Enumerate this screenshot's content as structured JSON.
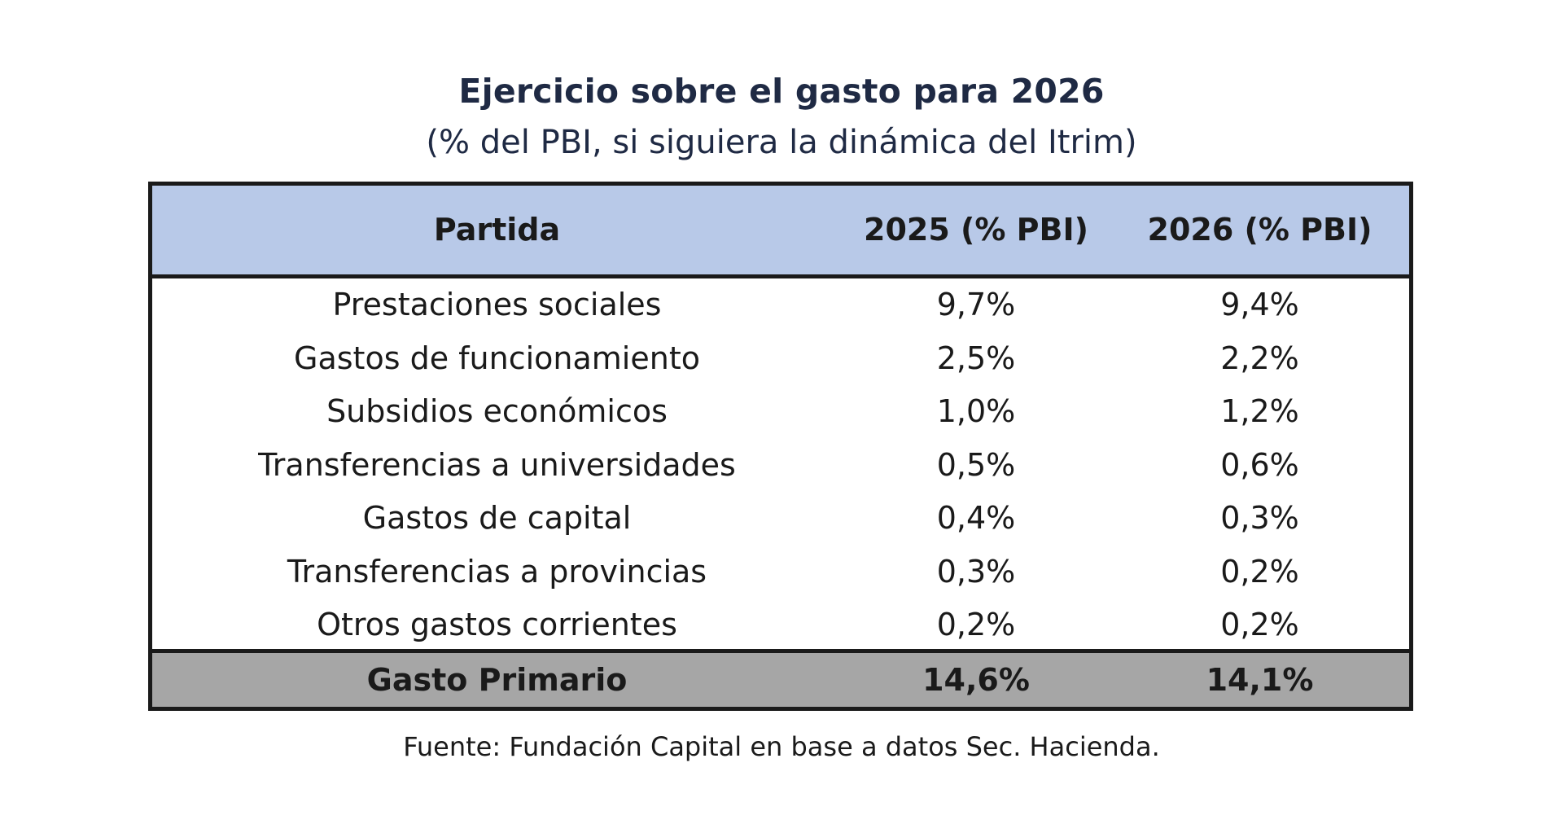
{
  "header": {
    "title": "Ejercicio sobre el gasto para 2026",
    "subtitle": "(% del PBI, si siguiera la dinámica del Itrim)"
  },
  "chart_data": {
    "type": "table",
    "title": "Ejercicio sobre el gasto para 2026",
    "subtitle": "(% del PBI, si siguiera la dinámica del Itrim)",
    "columns": [
      "Partida",
      "2025 (% PBI)",
      "2026 (% PBI)"
    ],
    "rows": [
      [
        "Prestaciones sociales",
        "9,7%",
        "9,4%"
      ],
      [
        "Gastos de funcionamiento",
        "2,5%",
        "2,2%"
      ],
      [
        "Subsidios económicos",
        "1,0%",
        "1,2%"
      ],
      [
        "Transferencias a universidades",
        "0,5%",
        "0,6%"
      ],
      [
        "Gastos de capital",
        "0,4%",
        "0,3%"
      ],
      [
        "Transferencias a provincias",
        "0,3%",
        "0,2%"
      ],
      [
        "Otros gastos corrientes",
        "0,2%",
        "0,2%"
      ]
    ],
    "total": [
      "Gasto Primario",
      "14,6%",
      "14,1%"
    ]
  },
  "footer": {
    "source": "Fuente: Fundación Capital en base a datos Sec. Hacienda."
  },
  "colors": {
    "header_bg": "#b8c9e8",
    "total_bg": "#a6a6a6",
    "border": "#1a1a1a",
    "title_text": "#1f2a44"
  }
}
